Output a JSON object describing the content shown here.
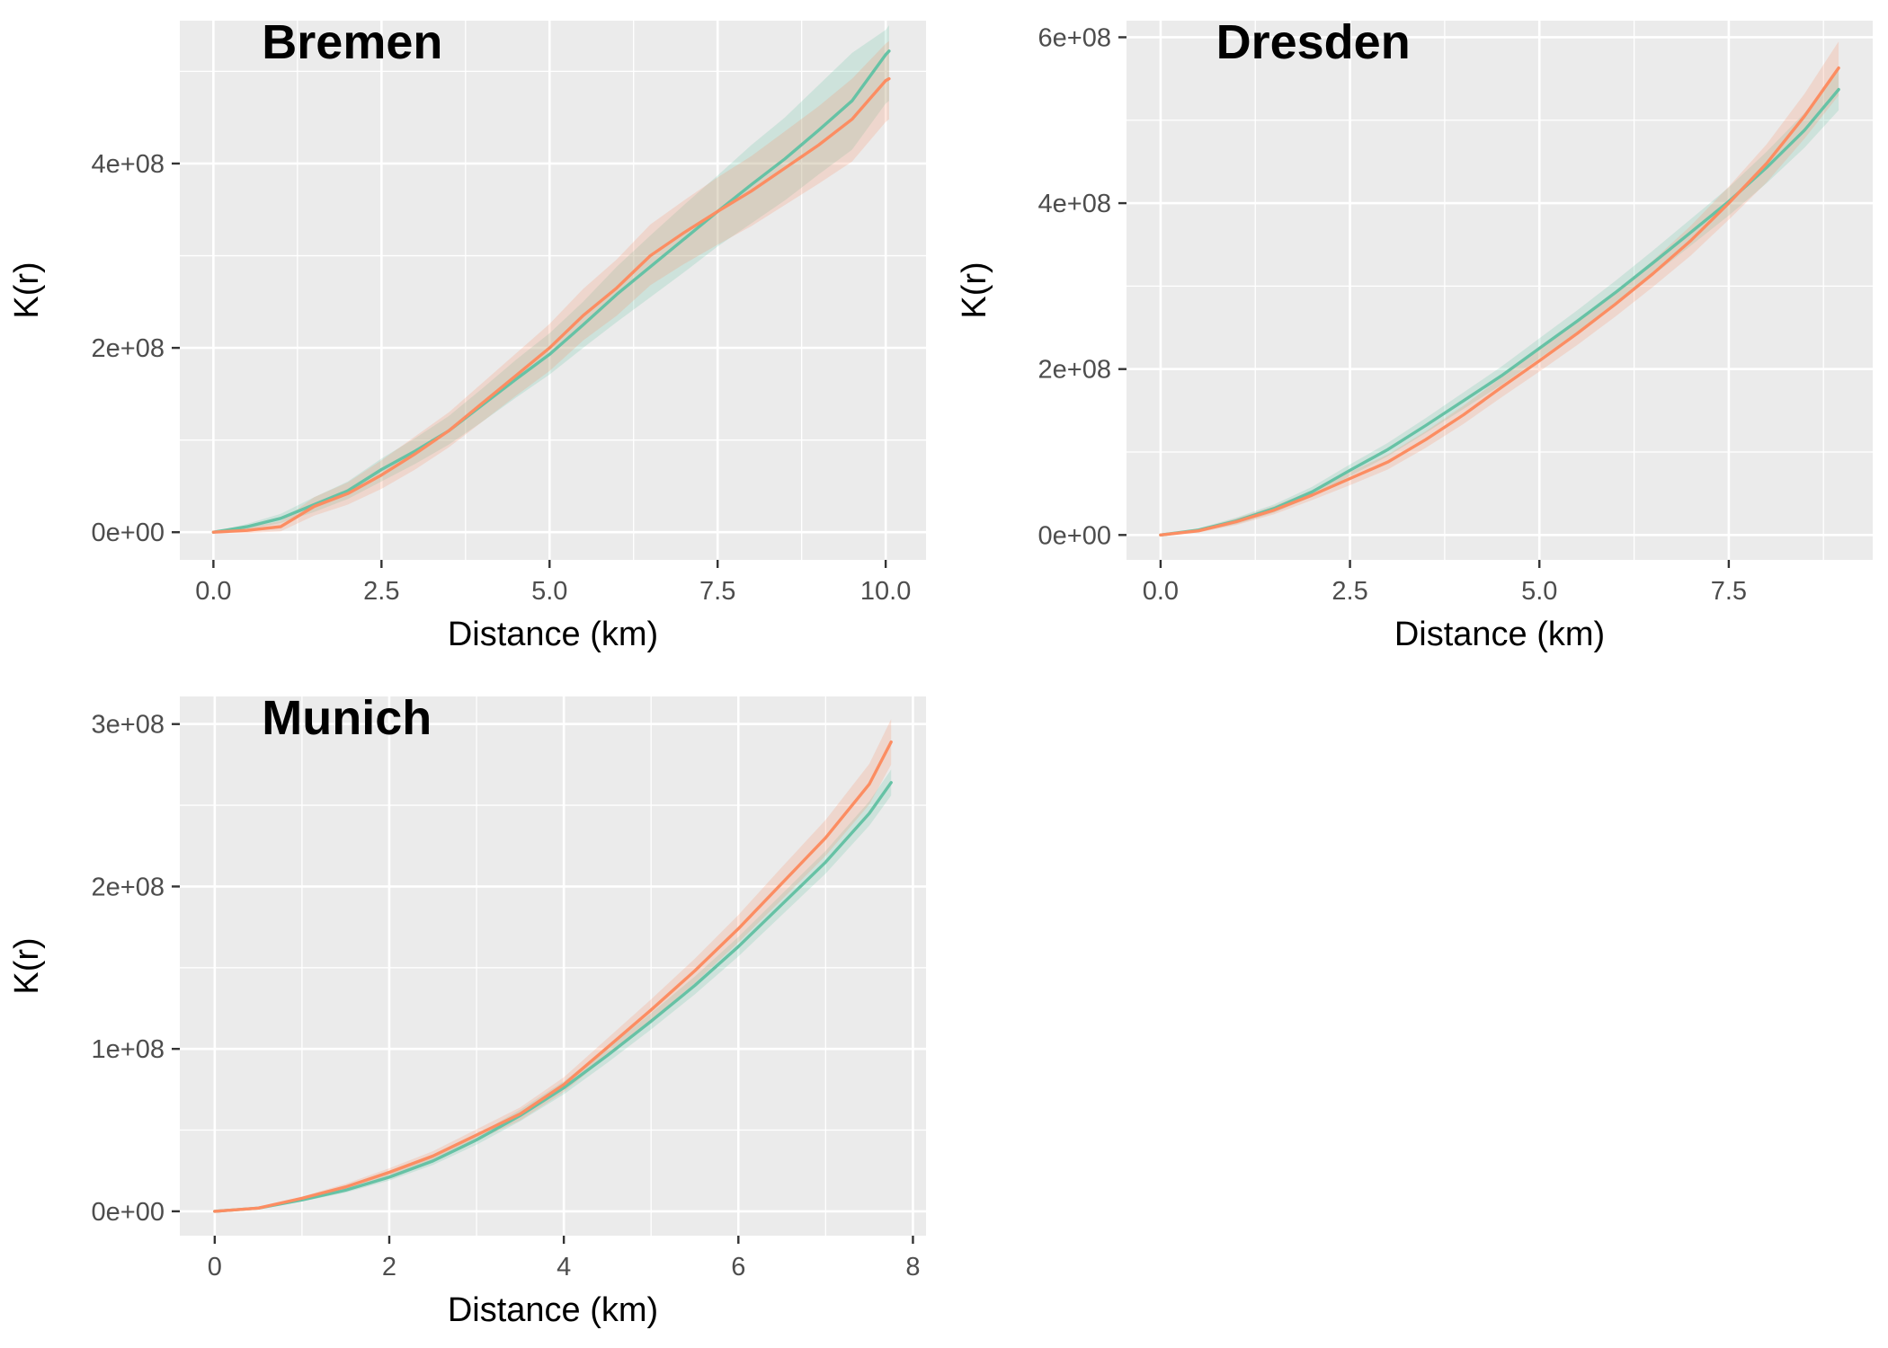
{
  "colors": {
    "panel_background": "#ebebeb",
    "grid": "#ffffff",
    "series_a": "#66c2a5",
    "series_b": "#fc8d62",
    "band_a": "#66c2a5",
    "band_b": "#fc8d62"
  },
  "chart_data": [
    {
      "type": "line",
      "title": "Bremen",
      "xlabel": "Distance (km)",
      "ylabel": "K(r)",
      "xlim": [
        -0.5,
        10.6
      ],
      "ylim": [
        -30000000.0,
        555000000.0
      ],
      "x_ticks": [
        0,
        2.5,
        5,
        7.5,
        10
      ],
      "x_tick_labels": [
        "0.0",
        "2.5",
        "5.0",
        "7.5",
        "10.0"
      ],
      "y_ticks": [
        0,
        200000000,
        400000000
      ],
      "y_tick_labels": [
        "0e+00",
        "2e+08",
        "4e+08"
      ],
      "grid": true,
      "legend": "none",
      "x": [
        0,
        0.5,
        1,
        1.5,
        2,
        2.5,
        3,
        3.5,
        4,
        4.5,
        5,
        5.5,
        6,
        6.5,
        7,
        7.5,
        8,
        8.5,
        9,
        9.5,
        10,
        10.05
      ],
      "series": [
        {
          "color": "#66c2a5",
          "values": [
            0,
            6000000,
            15000000,
            30000000,
            45000000,
            68000000,
            88000000,
            110000000,
            138000000,
            166000000,
            193000000,
            225000000,
            258000000,
            288000000,
            318000000,
            348000000,
            377000000,
            405000000,
            436000000,
            468000000,
            518000000,
            522000000
          ],
          "lower": [
            0,
            3000000,
            10000000,
            22000000,
            36000000,
            55000000,
            74000000,
            95000000,
            120000000,
            146000000,
            171000000,
            200000000,
            228000000,
            255000000,
            282000000,
            310000000,
            335000000,
            360000000,
            388000000,
            415000000,
            465000000,
            468000000
          ],
          "upper": [
            0,
            9000000,
            20000000,
            38000000,
            55000000,
            80000000,
            102000000,
            126000000,
            156000000,
            187000000,
            216000000,
            250000000,
            288000000,
            322000000,
            355000000,
            387000000,
            420000000,
            450000000,
            485000000,
            520000000,
            545000000,
            550000000
          ]
        },
        {
          "color": "#fc8d62",
          "values": [
            0,
            2000000,
            6000000,
            28000000,
            42000000,
            62000000,
            85000000,
            110000000,
            140000000,
            170000000,
            200000000,
            235000000,
            265000000,
            300000000,
            325000000,
            348000000,
            370000000,
            395000000,
            420000000,
            448000000,
            490000000,
            492000000
          ],
          "lower": [
            0,
            -1000000,
            1000000,
            18000000,
            30000000,
            47000000,
            68000000,
            92000000,
            120000000,
            148000000,
            175000000,
            208000000,
            235000000,
            268000000,
            291000000,
            312000000,
            332000000,
            355000000,
            378000000,
            402000000,
            445000000,
            448000000
          ],
          "upper": [
            0,
            5000000,
            12000000,
            38000000,
            54000000,
            78000000,
            104000000,
            130000000,
            162000000,
            194000000,
            226000000,
            264000000,
            296000000,
            334000000,
            360000000,
            385000000,
            408000000,
            435000000,
            462000000,
            492000000,
            530000000,
            533000000
          ]
        }
      ]
    },
    {
      "type": "line",
      "title": "Dresden",
      "xlabel": "Distance (km)",
      "ylabel": "K(r)",
      "xlim": [
        -0.45,
        9.4
      ],
      "ylim": [
        -30000000.0,
        620000000.0
      ],
      "x_ticks": [
        0,
        2.5,
        5,
        7.5
      ],
      "x_tick_labels": [
        "0.0",
        "2.5",
        "5.0",
        "7.5"
      ],
      "y_ticks": [
        0,
        200000000,
        400000000,
        600000000
      ],
      "y_tick_labels": [
        "0e+00",
        "2e+08",
        "4e+08",
        "6e+08"
      ],
      "grid": true,
      "legend": "none",
      "x": [
        0,
        0.5,
        1,
        1.5,
        2,
        2.5,
        3,
        3.5,
        4,
        4.5,
        5,
        5.5,
        6,
        6.5,
        7,
        7.5,
        8,
        8.5,
        8.95
      ],
      "series": [
        {
          "color": "#66c2a5",
          "values": [
            0,
            6000000,
            17000000,
            32000000,
            52000000,
            78000000,
            103000000,
            132000000,
            162000000,
            192000000,
            225000000,
            258000000,
            292000000,
            328000000,
            365000000,
            402000000,
            443000000,
            488000000,
            537000000
          ],
          "lower": [
            0,
            4000000,
            13000000,
            27000000,
            46000000,
            71000000,
            95000000,
            123000000,
            152000000,
            181000000,
            213000000,
            245000000,
            278000000,
            313000000,
            349000000,
            385000000,
            424000000,
            467000000,
            512000000
          ],
          "upper": [
            0,
            8000000,
            21000000,
            37000000,
            58000000,
            85000000,
            111000000,
            141000000,
            172000000,
            203000000,
            237000000,
            271000000,
            306000000,
            343000000,
            381000000,
            419000000,
            462000000,
            509000000,
            562000000
          ]
        },
        {
          "color": "#fc8d62",
          "values": [
            0,
            5000000,
            16000000,
            30000000,
            48000000,
            68000000,
            88000000,
            115000000,
            145000000,
            178000000,
            210000000,
            243000000,
            278000000,
            315000000,
            355000000,
            400000000,
            448000000,
            505000000,
            563000000
          ],
          "lower": [
            0,
            3000000,
            12000000,
            25000000,
            42000000,
            60000000,
            79000000,
            105000000,
            134000000,
            166000000,
            197000000,
            229000000,
            263000000,
            299000000,
            337000000,
            380000000,
            425000000,
            478000000,
            530000000
          ],
          "upper": [
            0,
            7000000,
            20000000,
            35000000,
            54000000,
            76000000,
            97000000,
            125000000,
            156000000,
            190000000,
            223000000,
            257000000,
            293000000,
            331000000,
            373000000,
            420000000,
            471000000,
            532000000,
            595000000
          ]
        }
      ]
    },
    {
      "type": "line",
      "title": "Munich",
      "xlabel": "Distance (km)",
      "ylabel": "K(r)",
      "xlim": [
        -0.4,
        8.15
      ],
      "ylim": [
        -15000000.0,
        317000000.0
      ],
      "x_ticks": [
        0,
        2,
        4,
        6,
        8
      ],
      "x_tick_labels": [
        "0",
        "2",
        "4",
        "6",
        "8"
      ],
      "y_ticks": [
        0,
        100000000,
        200000000,
        300000000
      ],
      "y_tick_labels": [
        "0e+00",
        "1e+08",
        "2e+08",
        "3e+08"
      ],
      "grid": true,
      "legend": "none",
      "x": [
        0,
        0.5,
        1,
        1.5,
        2,
        2.5,
        3,
        3.5,
        4,
        4.5,
        5,
        5.5,
        6,
        6.5,
        7,
        7.5,
        7.75
      ],
      "series": [
        {
          "color": "#66c2a5",
          "values": [
            0,
            2000000,
            7000000,
            13000000,
            21000000,
            31000000,
            44000000,
            59000000,
            76000000,
            96000000,
            117000000,
            139000000,
            163000000,
            189000000,
            215000000,
            245000000,
            264000000
          ],
          "lower": [
            0,
            1500000,
            6000000,
            11500000,
            19000000,
            28500000,
            41000000,
            55500000,
            72000000,
            91500000,
            112000000,
            133500000,
            157000000,
            182500000,
            208000000,
            237500000,
            256000000
          ],
          "upper": [
            0,
            2500000,
            8000000,
            14500000,
            23000000,
            33500000,
            47000000,
            62500000,
            80000000,
            100500000,
            122000000,
            144500000,
            169000000,
            195500000,
            222000000,
            252500000,
            272000000
          ]
        },
        {
          "color": "#fc8d62",
          "values": [
            0,
            2000000,
            8000000,
            15000000,
            24000000,
            34000000,
            47000000,
            60000000,
            78000000,
            101000000,
            124000000,
            148000000,
            174000000,
            202000000,
            230000000,
            263000000,
            289000000
          ],
          "lower": [
            0,
            1500000,
            7000000,
            13000000,
            21500000,
            31000000,
            43500000,
            56000000,
            73500000,
            95500000,
            117500000,
            140500000,
            165500000,
            192000000,
            219000000,
            250500000,
            275000000
          ],
          "upper": [
            0,
            2500000,
            9000000,
            17000000,
            26500000,
            37000000,
            50500000,
            64000000,
            82500000,
            106500000,
            130500000,
            155500000,
            182500000,
            212000000,
            241000000,
            275500000,
            303000000
          ]
        }
      ]
    }
  ]
}
